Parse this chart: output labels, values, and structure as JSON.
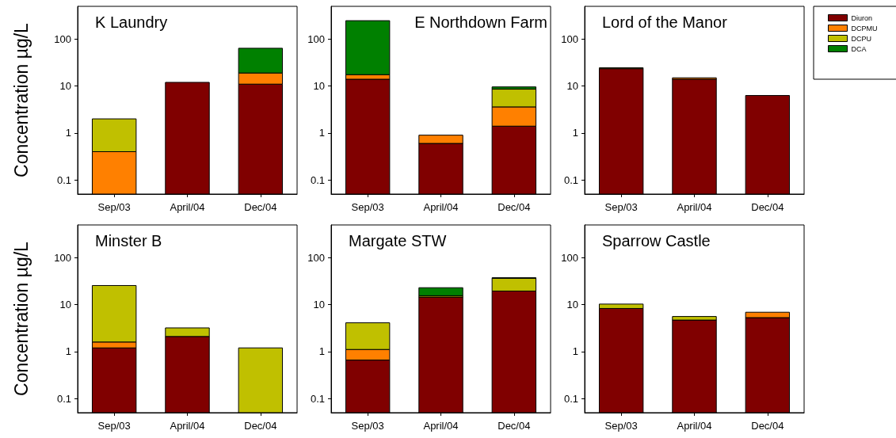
{
  "chart_data": [
    {
      "type": "bar",
      "stacked": true,
      "log": true,
      "title": "K Laundry",
      "ylabel": "Concentration µg/L",
      "categories": [
        "Sep/03",
        "April/04",
        "Dec/04"
      ],
      "ylim": [
        0.05,
        500
      ],
      "yticks": [
        0.1,
        1,
        10,
        100
      ],
      "legend": false,
      "series": [
        {
          "color": "#800000",
          "values": [
            null,
            12,
            11
          ]
        },
        {
          "color": "#ff8000",
          "values": [
            0.4,
            null,
            8
          ]
        },
        {
          "color": "#c0c000",
          "values": [
            1.6,
            null,
            null
          ]
        },
        {
          "color": "#008000",
          "values": [
            null,
            null,
            45
          ]
        }
      ]
    },
    {
      "type": "bar",
      "stacked": true,
      "log": true,
      "title": "E Northdown Farm",
      "categories": [
        "Sep/03",
        "April/04",
        "Dec/04"
      ],
      "ylim": [
        0.05,
        500
      ],
      "yticks": [
        0.1,
        1,
        10,
        100
      ],
      "legend": false,
      "series": [
        {
          "color": "#800000",
          "values": [
            14,
            0.6,
            1.4
          ]
        },
        {
          "color": "#ff8000",
          "values": [
            3.5,
            0.3,
            2.2
          ]
        },
        {
          "color": "#c0c000",
          "values": [
            null,
            null,
            5
          ]
        },
        {
          "color": "#008000",
          "values": [
            230,
            null,
            1
          ]
        }
      ]
    },
    {
      "type": "bar",
      "stacked": true,
      "log": true,
      "title": "Lord of the Manor",
      "categories": [
        "Sep/03",
        "April/04",
        "Dec/04"
      ],
      "ylim": [
        0.05,
        500
      ],
      "yticks": [
        0.1,
        1,
        10,
        100
      ],
      "legend": "top right",
      "series": [
        {
          "name": "Diuron",
          "color": "#800000",
          "values": [
            23.5,
            14,
            6.3
          ]
        },
        {
          "name": "DCPMU",
          "color": "#ff8000",
          "values": [
            null,
            1,
            null
          ]
        },
        {
          "name": "DCPU",
          "color": "#c0c000",
          "values": [
            1,
            null,
            null
          ]
        },
        {
          "name": "DCA",
          "color": "#008000",
          "values": [
            null,
            null,
            null
          ]
        }
      ]
    },
    {
      "type": "bar",
      "stacked": true,
      "log": true,
      "title": "Minster B",
      "ylabel": "Concentration µg/L",
      "categories": [
        "Sep/03",
        "April/04",
        "Dec/04"
      ],
      "ylim": [
        0.05,
        500
      ],
      "yticks": [
        0.1,
        1,
        10,
        100
      ],
      "legend": false,
      "series": [
        {
          "color": "#800000",
          "values": [
            1.2,
            2.1,
            null
          ]
        },
        {
          "color": "#ff8000",
          "values": [
            0.4,
            null,
            null
          ]
        },
        {
          "color": "#c0c000",
          "values": [
            24,
            1.1,
            1.2
          ]
        },
        {
          "color": "#008000",
          "values": [
            null,
            null,
            null
          ]
        }
      ]
    },
    {
      "type": "bar",
      "stacked": true,
      "log": true,
      "title": "Margate STW",
      "categories": [
        "Sep/03",
        "April/04",
        "Dec/04"
      ],
      "ylim": [
        0.05,
        500
      ],
      "yticks": [
        0.1,
        1,
        10,
        100
      ],
      "legend": false,
      "series": [
        {
          "color": "#800000",
          "values": [
            0.66,
            14.5,
            19.5
          ]
        },
        {
          "color": "#ff8000",
          "values": [
            0.45,
            null,
            null
          ]
        },
        {
          "color": "#c0c000",
          "values": [
            3,
            1,
            17
          ]
        },
        {
          "color": "#008000",
          "values": [
            null,
            7.5,
            1
          ]
        }
      ]
    },
    {
      "type": "bar",
      "stacked": true,
      "log": true,
      "title": "Sparrow Castle",
      "categories": [
        "Sep/03",
        "April/04",
        "Dec/04"
      ],
      "ylim": [
        0.05,
        500
      ],
      "yticks": [
        0.1,
        1,
        10,
        100
      ],
      "legend": false,
      "series": [
        {
          "color": "#800000",
          "values": [
            8.3,
            4.7,
            5.3
          ]
        },
        {
          "color": "#ff8000",
          "values": [
            null,
            null,
            1.6
          ]
        },
        {
          "color": "#c0c000",
          "values": [
            2,
            0.9,
            null
          ]
        },
        {
          "color": "#008000",
          "values": [
            null,
            null,
            null
          ]
        }
      ]
    }
  ]
}
